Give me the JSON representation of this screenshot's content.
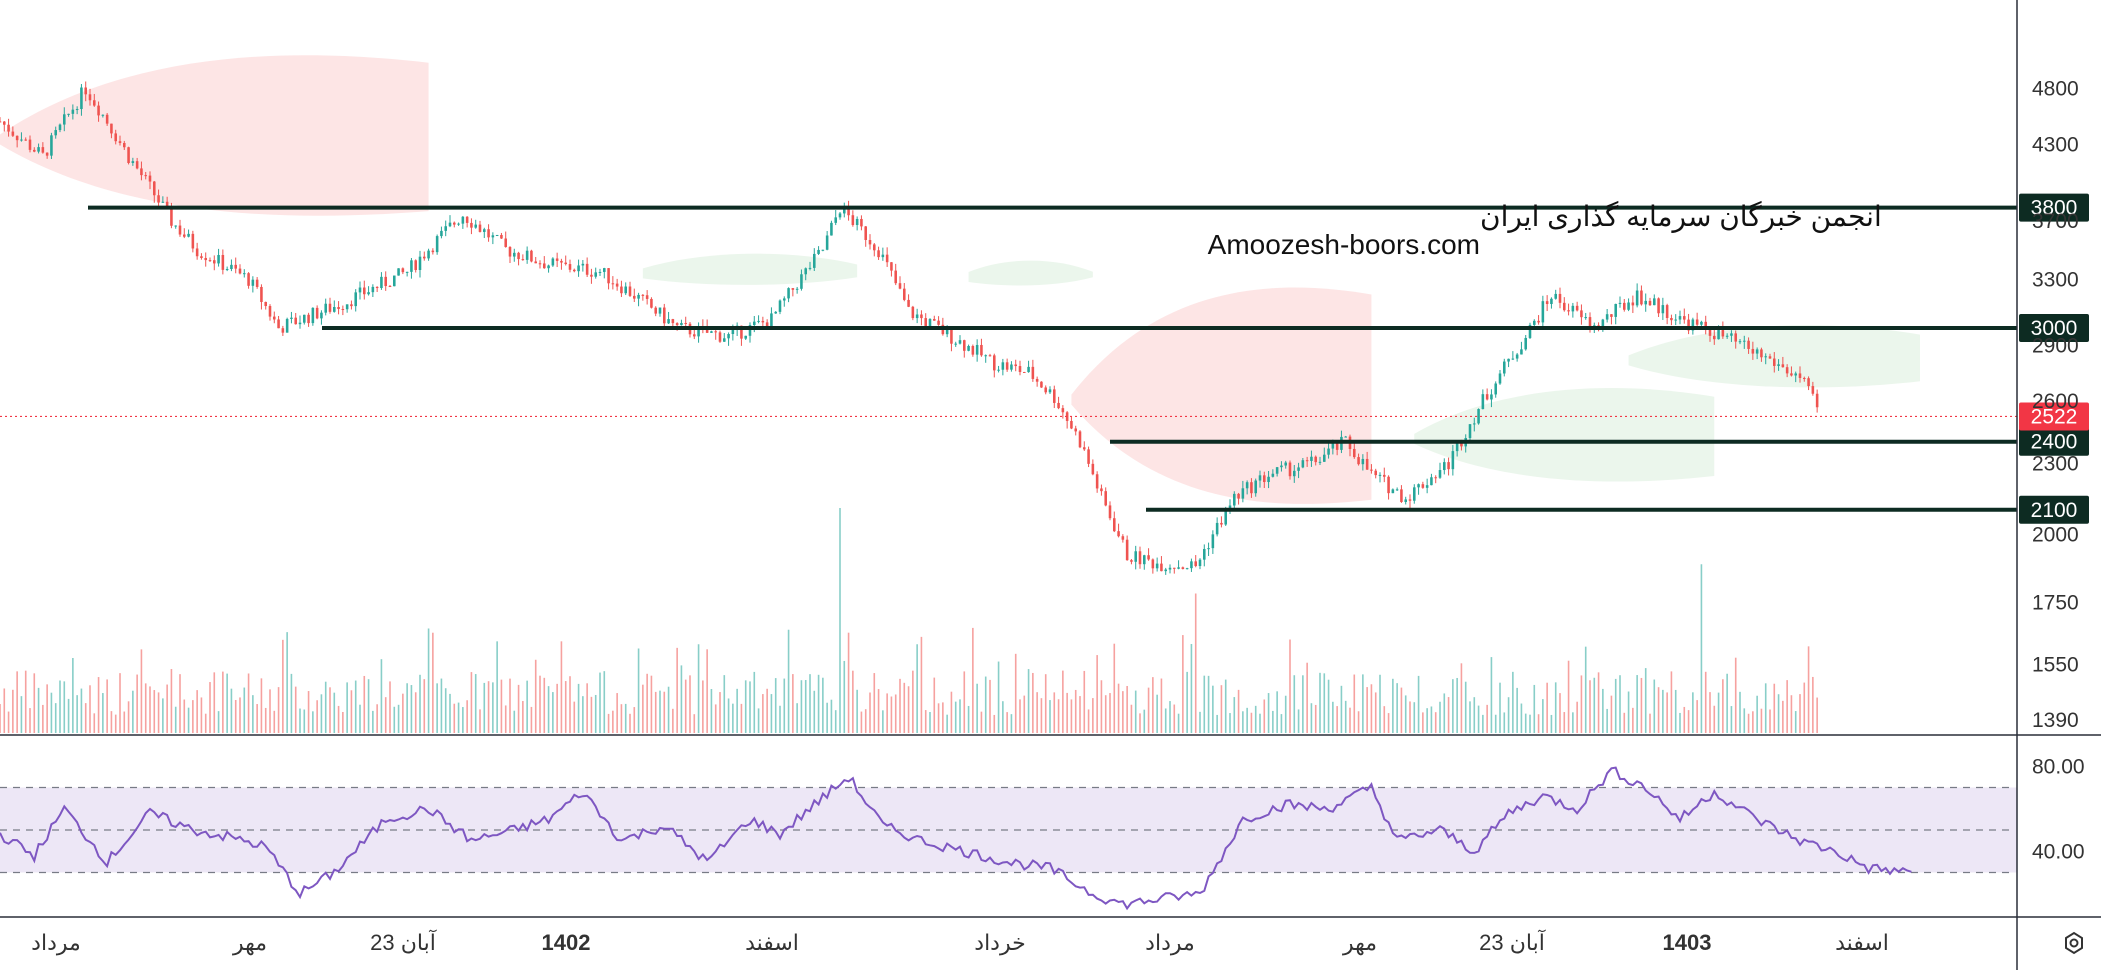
{
  "watermark": {
    "line1": "انجمن خبرگان سرمایه گذاری ایران",
    "line2": "Amoozesh-boors.com"
  },
  "colors": {
    "up": "#26a69a",
    "down": "#ef5350",
    "level_line": "#0d2b22",
    "level_label_bg": "#0d2b22",
    "last_price_bg": "#f23645",
    "rsi_line": "#7e57c2",
    "rsi_band": "#ede7f6",
    "cloud_bull": "#e8f5e9",
    "cloud_bear": "#fde0e0"
  },
  "chart_data": {
    "type": "candlestick",
    "price_axis": {
      "ticks": [
        4800,
        4300,
        3700,
        3300,
        2900,
        2600,
        2300,
        2000,
        1750,
        1550,
        1390
      ],
      "tick_labels": [
        "4800",
        "4300",
        "3700",
        "3300",
        "2900",
        "2600",
        "2300",
        "2000",
        "1750",
        "1550",
        "1390"
      ],
      "scale": "log",
      "range": [
        1390,
        5600
      ]
    },
    "horizontal_levels": [
      {
        "value": 3800,
        "label": "3800"
      },
      {
        "value": 3000,
        "label": "3000"
      },
      {
        "value": 2400,
        "label": "2400"
      },
      {
        "value": 2100,
        "label": "2100"
      }
    ],
    "last_price": {
      "value": 2522,
      "label": "2522"
    },
    "close_path": [
      [
        0,
        4500
      ],
      [
        10,
        4200
      ],
      [
        20,
        4800
      ],
      [
        30,
        4200
      ],
      [
        40,
        3700
      ],
      [
        46,
        3500
      ],
      [
        58,
        3300
      ],
      [
        65,
        3000
      ],
      [
        80,
        3150
      ],
      [
        95,
        3350
      ],
      [
        108,
        3750
      ],
      [
        118,
        3500
      ],
      [
        128,
        3400
      ],
      [
        140,
        3350
      ],
      [
        148,
        3200
      ],
      [
        158,
        3000
      ],
      [
        170,
        2950
      ],
      [
        180,
        3050
      ],
      [
        192,
        3500
      ],
      [
        196,
        3800
      ],
      [
        205,
        3500
      ],
      [
        212,
        3100
      ],
      [
        222,
        2950
      ],
      [
        232,
        2800
      ],
      [
        240,
        2750
      ],
      [
        246,
        2620
      ],
      [
        252,
        2400
      ],
      [
        257,
        2150
      ],
      [
        263,
        1920
      ],
      [
        270,
        1890
      ],
      [
        279,
        1880
      ],
      [
        288,
        2150
      ],
      [
        296,
        2250
      ],
      [
        306,
        2300
      ],
      [
        314,
        2400
      ],
      [
        320,
        2250
      ],
      [
        328,
        2150
      ],
      [
        338,
        2300
      ],
      [
        346,
        2600
      ],
      [
        356,
        2950
      ],
      [
        362,
        3200
      ],
      [
        372,
        3000
      ],
      [
        382,
        3200
      ],
      [
        392,
        3050
      ],
      [
        402,
        2950
      ],
      [
        412,
        2830
      ],
      [
        420,
        2720
      ],
      [
        424,
        2560
      ]
    ],
    "volume_spikes": [
      {
        "x": 196,
        "value": 1.0
      },
      {
        "x": 279,
        "value": 0.62
      },
      {
        "x": 397,
        "value": 0.75
      }
    ],
    "cloud_segments": [
      {
        "kind": "bear",
        "from": 0,
        "to": 100,
        "top": 5200,
        "bottom": 3700
      },
      {
        "kind": "bull",
        "from": 150,
        "to": 200,
        "top": 3500,
        "bottom": 3250
      },
      {
        "kind": "bull",
        "from": 226,
        "to": 255,
        "top": 3450,
        "bottom": 3250
      },
      {
        "kind": "bear",
        "from": 250,
        "to": 320,
        "top": 3300,
        "bottom": 2100
      },
      {
        "kind": "bull",
        "from": 330,
        "to": 400,
        "top": 2700,
        "bottom": 2200
      },
      {
        "kind": "bull",
        "from": 380,
        "to": 448,
        "top": 3050,
        "bottom": 2650
      }
    ],
    "rsi": {
      "ticks": [
        80,
        40
      ],
      "tick_labels": [
        "80.00",
        "40.00"
      ],
      "upper": 70,
      "middle": 50,
      "lower": 30,
      "range": [
        10,
        90
      ],
      "path": [
        [
          0,
          48
        ],
        [
          8,
          38
        ],
        [
          15,
          60
        ],
        [
          25,
          35
        ],
        [
          35,
          58
        ],
        [
          45,
          50
        ],
        [
          55,
          46
        ],
        [
          62,
          42
        ],
        [
          70,
          20
        ],
        [
          78,
          30
        ],
        [
          90,
          55
        ],
        [
          100,
          60
        ],
        [
          110,
          45
        ],
        [
          120,
          50
        ],
        [
          128,
          55
        ],
        [
          136,
          68
        ],
        [
          145,
          45
        ],
        [
          155,
          52
        ],
        [
          165,
          35
        ],
        [
          175,
          55
        ],
        [
          182,
          48
        ],
        [
          190,
          62
        ],
        [
          198,
          75
        ],
        [
          206,
          52
        ],
        [
          215,
          45
        ],
        [
          225,
          40
        ],
        [
          235,
          35
        ],
        [
          245,
          32
        ],
        [
          255,
          20
        ],
        [
          262,
          15
        ],
        [
          272,
          18
        ],
        [
          280,
          20
        ],
        [
          290,
          55
        ],
        [
          300,
          62
        ],
        [
          310,
          60
        ],
        [
          320,
          70
        ],
        [
          326,
          45
        ],
        [
          336,
          50
        ],
        [
          344,
          40
        ],
        [
          352,
          58
        ],
        [
          360,
          66
        ],
        [
          368,
          60
        ],
        [
          376,
          78
        ],
        [
          384,
          70
        ],
        [
          392,
          55
        ],
        [
          400,
          68
        ],
        [
          410,
          55
        ],
        [
          420,
          45
        ],
        [
          428,
          40
        ],
        [
          436,
          32
        ],
        [
          446,
          30
        ]
      ]
    },
    "time_axis": {
      "labels": [
        {
          "text": "مرداد",
          "bold": false
        },
        {
          "text": "مهر",
          "bold": false
        },
        {
          "text": "23 آبان",
          "bold": false
        },
        {
          "text": "1402",
          "bold": true
        },
        {
          "text": "اسفند",
          "bold": false
        },
        {
          "text": "خرداد",
          "bold": false
        },
        {
          "text": "مرداد",
          "bold": false
        },
        {
          "text": "مهر",
          "bold": false
        },
        {
          "text": "23 آبان",
          "bold": false
        },
        {
          "text": "1403",
          "bold": true
        },
        {
          "text": "اسفند",
          "bold": false
        }
      ]
    }
  },
  "toolbar": {
    "settings_icon": "hexagon-gear-icon"
  }
}
